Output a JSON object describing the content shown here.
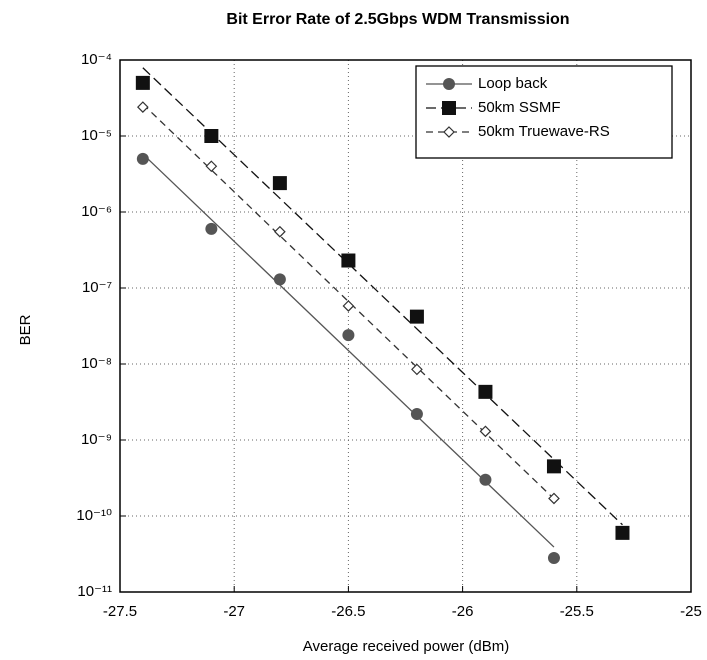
{
  "chart_data": {
    "type": "scatter",
    "title": "Bit Error Rate of 2.5Gbps WDM Transmission",
    "x_label": "Average received power (dBm)",
    "y_label": "BER",
    "log_y": true,
    "grid": true,
    "legend": "upper right",
    "xlim": [
      -27.5,
      -25
    ],
    "xticks": [
      -27.5,
      -27,
      -26.5,
      -26,
      -25.5,
      -25
    ],
    "ylim": [
      1e-11,
      0.0001
    ],
    "yticks": [
      {
        "value": 1e-11,
        "label": "10⁻¹¹"
      },
      {
        "value": 1e-10,
        "label": "10⁻¹⁰"
      },
      {
        "value": 1e-09,
        "label": "10⁻⁹"
      },
      {
        "value": 1e-08,
        "label": "10⁻⁸"
      },
      {
        "value": 1e-07,
        "label": "10⁻⁷"
      },
      {
        "value": 1e-06,
        "label": "10⁻⁶"
      },
      {
        "value": 1e-05,
        "label": "10⁻⁵"
      },
      {
        "value": 0.0001,
        "label": "10⁻⁴"
      }
    ],
    "series": [
      {
        "name": "Loop back",
        "color": "#555555",
        "marker": "circle",
        "x": [
          -27.4,
          -27.1,
          -26.8,
          -26.5,
          -26.2,
          -25.9,
          -25.6
        ],
        "values": [
          5e-06,
          6e-07,
          1.3e-07,
          2.4e-08,
          2.2e-09,
          3e-10,
          2.8e-11
        ]
      },
      {
        "name": "50km SSMF",
        "color": "#111111",
        "marker": "square",
        "x": [
          -27.4,
          -27.1,
          -26.8,
          -26.5,
          -26.2,
          -25.9,
          -25.6,
          -25.3
        ],
        "values": [
          5e-05,
          1e-05,
          2.4e-06,
          2.3e-07,
          4.2e-08,
          4.3e-09,
          4.5e-10,
          6e-11
        ]
      },
      {
        "name": "50km Truewave-RS",
        "color": "#333333",
        "marker": "diamond",
        "x": [
          -27.4,
          -27.1,
          -26.8,
          -26.5,
          -26.2,
          -25.9,
          -25.6
        ],
        "values": [
          2.4e-05,
          4e-06,
          5.5e-07,
          5.8e-08,
          8.5e-09,
          1.3e-09,
          1.7e-10
        ]
      }
    ]
  }
}
